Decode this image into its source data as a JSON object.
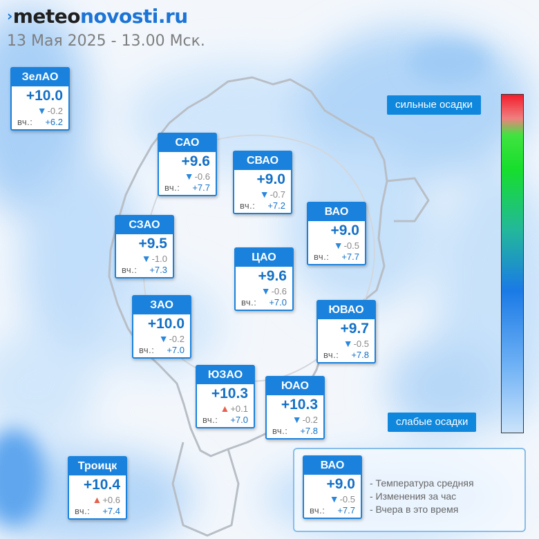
{
  "header": {
    "logo_prefix": "meteo",
    "logo_suffix": "novosti.ru",
    "datetime": "13 Мая 2025 - 13.00 Мск."
  },
  "colors": {
    "brand": "#1a82dc",
    "temp_text": "#1470c5",
    "down_arrow": "#2a87dc",
    "up_arrow": "#e6604d"
  },
  "yesterday_label": "вч.:",
  "districts": [
    {
      "name": "ЗелАО",
      "temp": "+10.0",
      "dir": "down",
      "change": "-0.2",
      "yesterday": "+6.2"
    },
    {
      "name": "САО",
      "temp": "+9.6",
      "dir": "down",
      "change": "-0.6",
      "yesterday": "+7.7"
    },
    {
      "name": "СВАО",
      "temp": "+9.0",
      "dir": "down",
      "change": "-0.7",
      "yesterday": "+7.2"
    },
    {
      "name": "ВАО",
      "temp": "+9.0",
      "dir": "down",
      "change": "-0.5",
      "yesterday": "+7.7"
    },
    {
      "name": "СЗАО",
      "temp": "+9.5",
      "dir": "down",
      "change": "-1.0",
      "yesterday": "+7.3"
    },
    {
      "name": "ЦАО",
      "temp": "+9.6",
      "dir": "down",
      "change": "-0.6",
      "yesterday": "+7.0"
    },
    {
      "name": "ЗАО",
      "temp": "+10.0",
      "dir": "down",
      "change": "-0.2",
      "yesterday": "+7.0"
    },
    {
      "name": "ЮВАО",
      "temp": "+9.7",
      "dir": "down",
      "change": "-0.5",
      "yesterday": "+7.8"
    },
    {
      "name": "ЮЗАО",
      "temp": "+10.3",
      "dir": "up",
      "change": "+0.1",
      "yesterday": "+7.0"
    },
    {
      "name": "ЮАО",
      "temp": "+10.3",
      "dir": "down",
      "change": "-0.2",
      "yesterday": "+7.8"
    },
    {
      "name": "Троицк",
      "temp": "+10.4",
      "dir": "up",
      "change": "+0.6",
      "yesterday": "+7.4"
    }
  ],
  "legend": {
    "sample": {
      "name": "ВАО",
      "temp": "+9.0",
      "dir": "down",
      "change": "-0.5",
      "yesterday": "+7.7"
    },
    "line1": "- Температура средняя",
    "line2": "- Изменения за час",
    "line3": "- Вчера в это время"
  },
  "precip_scale": {
    "high_label": "сильные осадки",
    "low_label": "слабые осадки"
  }
}
